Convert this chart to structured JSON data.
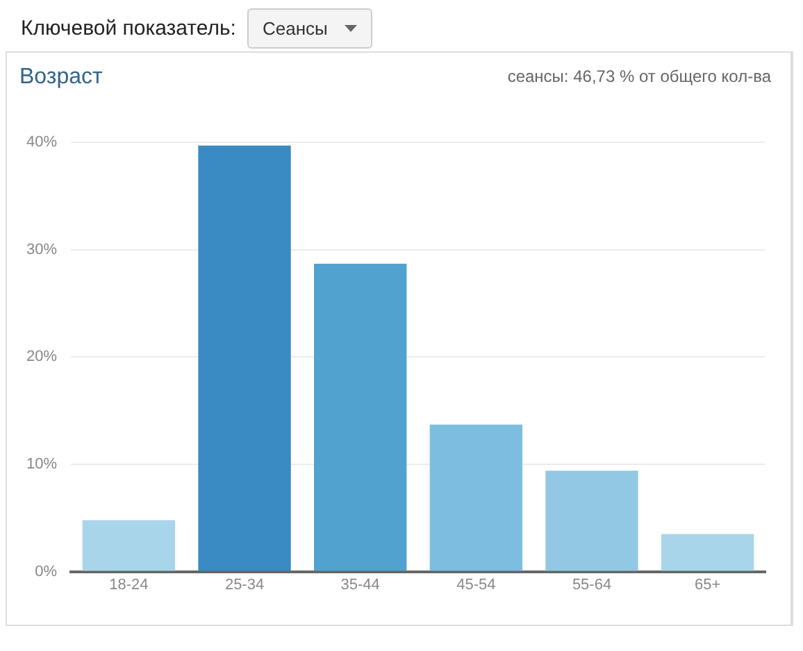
{
  "chart_data": {
    "type": "bar",
    "title": "Возраст",
    "subtitle": "сеансы: 46,73 % от общего кол-ва",
    "annotations": [
      "Ключевой показатель:",
      "Сеансы"
    ],
    "categories": [
      "18-24",
      "25-34",
      "35-44",
      "45-54",
      "55-64",
      "65+"
    ],
    "values": [
      4.8,
      39.7,
      28.7,
      13.7,
      9.4,
      3.5
    ],
    "colors": [
      "#a8d5ea",
      "#3a8ac3",
      "#52a2cf",
      "#7dbde0",
      "#92c8e4",
      "#a8d5ea"
    ],
    "ylim": [
      0,
      40
    ],
    "yticks": [
      {
        "value": 0,
        "label": "0%"
      },
      {
        "value": 10,
        "label": "10%"
      },
      {
        "value": 20,
        "label": "20%"
      },
      {
        "value": 30,
        "label": "30%"
      },
      {
        "value": 40,
        "label": "40%"
      }
    ],
    "grid": "y",
    "legend": false
  }
}
